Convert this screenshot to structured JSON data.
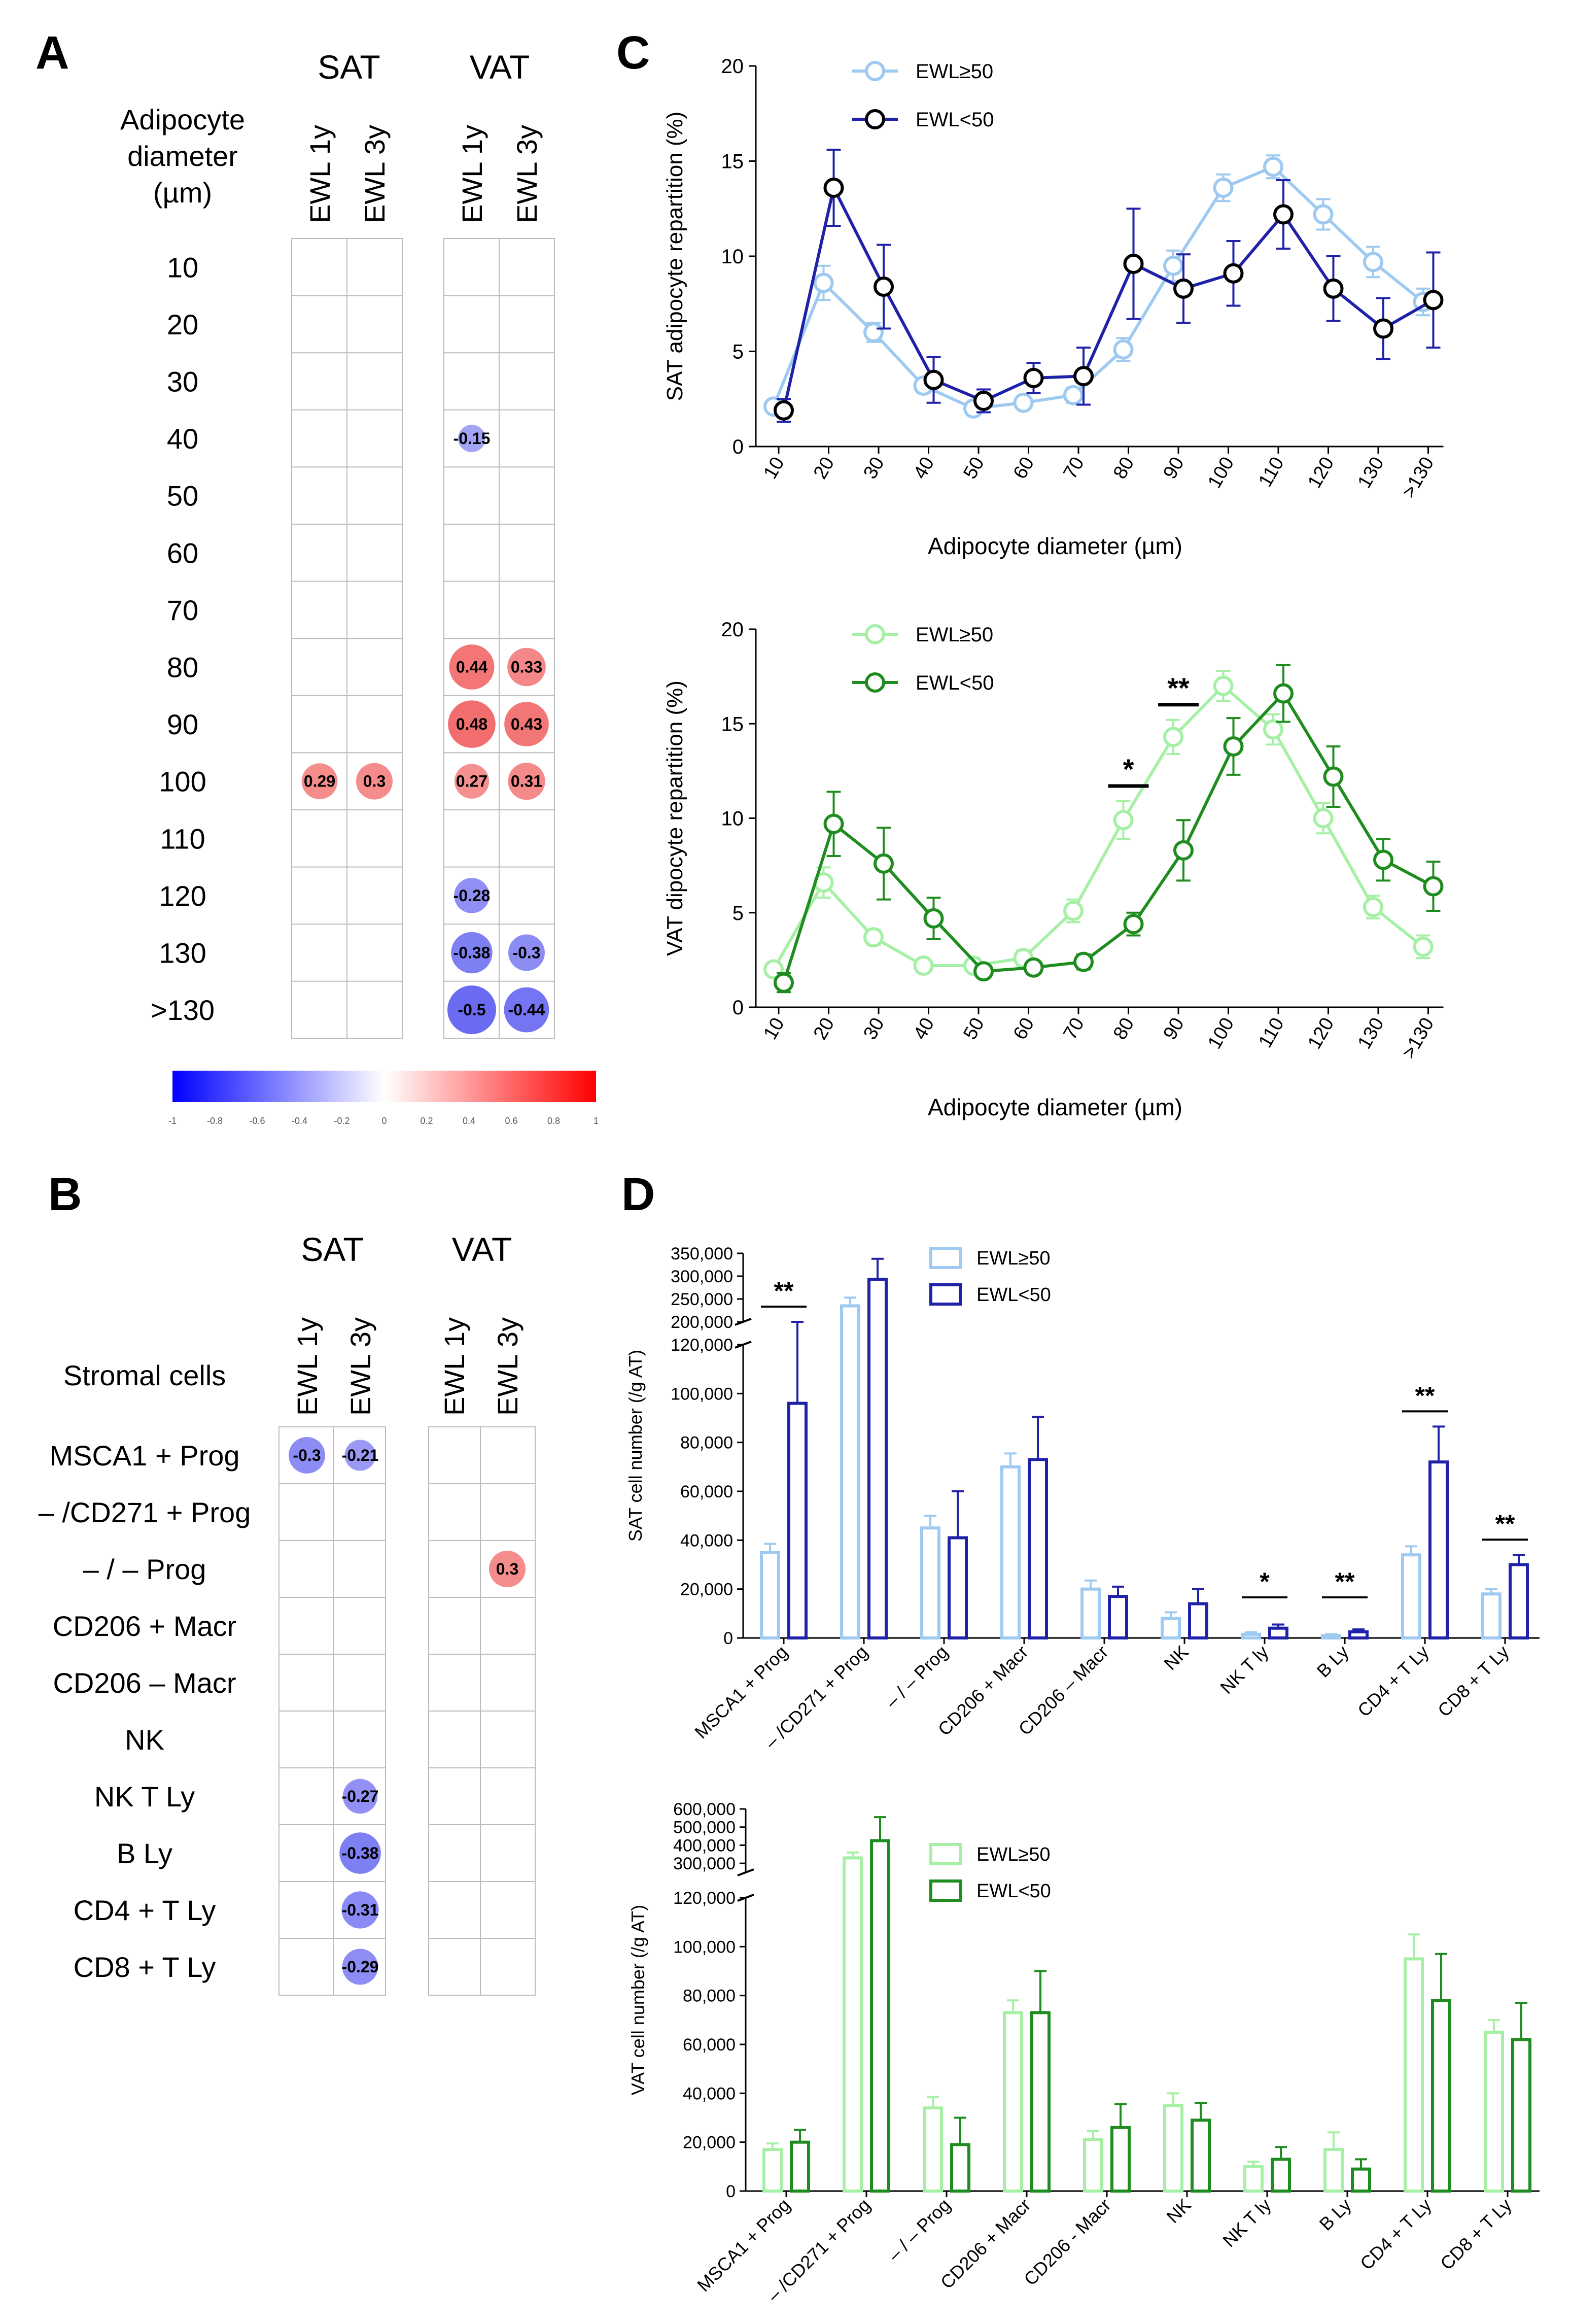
{
  "colors": {
    "sat_light": "#9ec9f0",
    "sat_dark": "#1f22a8",
    "vat_light": "#a6f0a6",
    "vat_dark": "#1f8c1f",
    "pos": "#f26b6b",
    "neg": "#6b6bf2",
    "black": "#000000",
    "grid": "#bbbbbb"
  },
  "panel_labels": {
    "a": "A",
    "b": "B",
    "c": "C",
    "d": "D"
  },
  "corr_a": {
    "group_labels": [
      "SAT",
      "VAT"
    ],
    "col_labels": [
      "EWL 1y",
      "EWL 3y",
      "EWL 1y",
      "EWL 3y"
    ],
    "row_header": [
      "Adipocyte",
      "diameter",
      "(µm)"
    ],
    "rows": [
      "10",
      "20",
      "30",
      "40",
      "50",
      "60",
      "70",
      "80",
      "90",
      "100",
      "110",
      "120",
      "130",
      ">130"
    ],
    "cells": [
      {
        "row": 3,
        "col": 2,
        "value": -0.15,
        "label": "-0.15"
      },
      {
        "row": 7,
        "col": 2,
        "value": 0.44,
        "label": "0.44"
      },
      {
        "row": 7,
        "col": 3,
        "value": 0.33,
        "label": "0.33"
      },
      {
        "row": 8,
        "col": 2,
        "value": 0.48,
        "label": "0.48"
      },
      {
        "row": 8,
        "col": 3,
        "value": 0.43,
        "label": "0.43"
      },
      {
        "row": 9,
        "col": 0,
        "value": 0.29,
        "label": "0.29"
      },
      {
        "row": 9,
        "col": 1,
        "value": 0.3,
        "label": "0.3"
      },
      {
        "row": 9,
        "col": 2,
        "value": 0.27,
        "label": "0.27"
      },
      {
        "row": 9,
        "col": 3,
        "value": 0.31,
        "label": "0.31"
      },
      {
        "row": 11,
        "col": 2,
        "value": -0.28,
        "label": "-0.28"
      },
      {
        "row": 12,
        "col": 2,
        "value": -0.38,
        "label": "-0.38"
      },
      {
        "row": 12,
        "col": 3,
        "value": -0.3,
        "label": "-0.3"
      },
      {
        "row": 13,
        "col": 2,
        "value": -0.5,
        "label": "-0.5"
      },
      {
        "row": 13,
        "col": 3,
        "value": -0.44,
        "label": "-0.44"
      }
    ]
  },
  "colorbar": {
    "ticks": [
      "-1",
      "-0.8",
      "-0.6",
      "-0.4",
      "-0.2",
      "0",
      "0.2",
      "0.4",
      "0.6",
      "0.8",
      "1"
    ]
  },
  "corr_b": {
    "group_labels": [
      "SAT",
      "VAT"
    ],
    "col_labels": [
      "EWL 1y",
      "EWL 3y",
      "EWL 1y",
      "EWL 3y"
    ],
    "row_header": "Stromal cells",
    "rows": [
      "MSCA1 + Prog",
      "– /CD271 + Prog",
      "– / – Prog",
      "CD206 + Macr",
      "CD206 – Macr",
      "NK",
      "NK T Ly",
      "B Ly",
      "CD4 + T Ly",
      "CD8 + T Ly"
    ],
    "cells": [
      {
        "row": 0,
        "col": 0,
        "value": -0.3,
        "label": "-0.3"
      },
      {
        "row": 0,
        "col": 1,
        "value": -0.21,
        "label": "-0.21"
      },
      {
        "row": 2,
        "col": 3,
        "value": 0.3,
        "label": "0.3"
      },
      {
        "row": 6,
        "col": 1,
        "value": -0.27,
        "label": "-0.27"
      },
      {
        "row": 7,
        "col": 1,
        "value": -0.38,
        "label": "-0.38"
      },
      {
        "row": 8,
        "col": 1,
        "value": -0.31,
        "label": "-0.31"
      },
      {
        "row": 9,
        "col": 1,
        "value": -0.29,
        "label": "-0.29"
      }
    ]
  },
  "chart_data": [
    {
      "type": "line",
      "title": "",
      "xlabel": "Adipocyte diameter (µm)",
      "ylabel": "SAT adipocyte repartition (%)",
      "categories": [
        "10",
        "20",
        "30",
        "40",
        "50",
        "60",
        "70",
        "80",
        "90",
        "100",
        "110",
        "120",
        "130",
        ">130"
      ],
      "ylim": [
        0,
        20
      ],
      "yticks": [
        "0",
        "5",
        "10",
        "15",
        "20"
      ],
      "legend": "top-left",
      "series": [
        {
          "name": "EWL≥50",
          "values": [
            2.1,
            8.6,
            6.0,
            3.2,
            2.0,
            2.3,
            2.7,
            5.1,
            9.5,
            13.6,
            14.7,
            12.2,
            9.7,
            7.6
          ],
          "errors": [
            0.3,
            0.9,
            0.5,
            0.4,
            0.3,
            0.3,
            0.4,
            0.6,
            0.8,
            0.7,
            0.6,
            0.8,
            0.8,
            0.7
          ]
        },
        {
          "name": "EWL<50",
          "values": [
            1.9,
            13.6,
            8.4,
            3.5,
            2.4,
            3.6,
            3.7,
            9.6,
            8.3,
            9.1,
            12.2,
            8.3,
            6.2,
            7.7
          ],
          "errors": [
            0.6,
            2.0,
            2.2,
            1.2,
            0.6,
            0.8,
            1.5,
            2.9,
            1.8,
            1.7,
            1.8,
            1.7,
            1.6,
            2.5
          ]
        }
      ],
      "significance": []
    },
    {
      "type": "line",
      "title": "",
      "xlabel": "Adipocyte diameter (µm)",
      "ylabel": "VAT dipocyte repartition (%)",
      "categories": [
        "10",
        "20",
        "30",
        "40",
        "50",
        "60",
        "70",
        "80",
        "90",
        "100",
        "110",
        "120",
        "130",
        ">130"
      ],
      "ylim": [
        0,
        20
      ],
      "yticks": [
        "0",
        "5",
        "10",
        "15",
        "20"
      ],
      "legend": "top-left",
      "series": [
        {
          "name": "EWL≥50",
          "values": [
            2.0,
            6.6,
            3.7,
            2.2,
            2.2,
            2.6,
            5.1,
            9.9,
            14.3,
            17.0,
            14.7,
            10.0,
            5.3,
            3.2
          ],
          "errors": [
            0.3,
            0.8,
            0.4,
            0.3,
            0.3,
            0.4,
            0.6,
            1.0,
            0.9,
            0.8,
            0.8,
            0.8,
            0.6,
            0.6
          ]
        },
        {
          "name": "EWL<50",
          "values": [
            1.3,
            9.7,
            7.6,
            4.7,
            1.9,
            2.1,
            2.4,
            4.4,
            8.3,
            13.8,
            16.6,
            12.2,
            7.8,
            6.4
          ],
          "errors": [
            0.5,
            1.7,
            1.9,
            1.1,
            0.3,
            0.3,
            0.4,
            0.6,
            1.6,
            1.5,
            1.5,
            1.6,
            1.1,
            1.3
          ]
        }
      ],
      "significance": [
        {
          "category": "80",
          "label": "*"
        },
        {
          "category": "90",
          "label": "**"
        }
      ]
    },
    {
      "type": "bar",
      "title": "",
      "xlabel": "",
      "ylabel": "SAT cell number (/g AT)",
      "categories": [
        "MSCA1 + Prog",
        "– /CD271 + Prog",
        "– / – Prog",
        "CD206 + Macr",
        "CD206 – Macr",
        "NK",
        "NK T ly",
        "B Ly",
        "CD4 + T Ly",
        "CD8 + T Ly"
      ],
      "ylim_lower": [
        0,
        120000
      ],
      "ylim_upper": [
        200000,
        350000
      ],
      "yticks_lower": [
        "0",
        "20,000",
        "40,000",
        "60,000",
        "80,000",
        "100,000",
        "120,000"
      ],
      "yticks_upper": [
        "200,000",
        "250,000",
        "300,000",
        "350,000"
      ],
      "legend": "top-center",
      "series": [
        {
          "name": "EWL≥50",
          "values": [
            35000,
            235000,
            45000,
            70000,
            20000,
            8000,
            1500,
            1000,
            34000,
            18000
          ],
          "errors": [
            3500,
            18000,
            5000,
            5500,
            3500,
            2500,
            800,
            500,
            3500,
            2000
          ]
        },
        {
          "name": "EWL<50",
          "values": [
            96000,
            293000,
            41000,
            73000,
            17000,
            14000,
            4000,
            2500,
            72000,
            30000
          ],
          "errors": [
            29000,
            45000,
            19000,
            17500,
            4000,
            6000,
            1500,
            1000,
            14500,
            4000
          ]
        }
      ],
      "significance": [
        {
          "category": "MSCA1 + Prog",
          "label": "**"
        },
        {
          "category": "NK T ly",
          "label": "*"
        },
        {
          "category": "B Ly",
          "label": "**"
        },
        {
          "category": "CD4 + T Ly",
          "label": "**"
        },
        {
          "category": "CD8 + T Ly",
          "label": "**"
        }
      ]
    },
    {
      "type": "bar",
      "title": "",
      "xlabel": "",
      "ylabel": "VAT cell number (/g AT)",
      "categories": [
        "MSCA1 + Prog",
        "– /CD271 + Prog",
        "– / – Prog",
        "CD206 + Macr",
        "CD206 - Macr",
        "NK",
        "NK T ly",
        "B Ly",
        "CD4 + T Ly",
        "CD8 + T Ly"
      ],
      "ylim_lower": [
        0,
        120000
      ],
      "ylim_upper": [
        250000,
        600000
      ],
      "yticks_lower": [
        "0",
        "20,000",
        "40,000",
        "60,000",
        "80,000",
        "100,000",
        "120,000"
      ],
      "yticks_upper": [
        "300,000",
        "400,000",
        "500,000",
        "600,000"
      ],
      "legend": "top-center",
      "series": [
        {
          "name": "EWL≥50",
          "values": [
            17000,
            330000,
            34000,
            73000,
            21000,
            35000,
            10000,
            17000,
            95000,
            65000
          ],
          "errors": [
            2500,
            30000,
            4500,
            5000,
            3500,
            5000,
            2000,
            7000,
            10000,
            5000
          ]
        },
        {
          "name": "EWL<50",
          "values": [
            20000,
            425000,
            19000,
            73000,
            26000,
            29000,
            13000,
            9000,
            78000,
            62000
          ],
          "errors": [
            5000,
            130000,
            11000,
            17000,
            9500,
            7000,
            5000,
            4000,
            19000,
            15000
          ]
        }
      ],
      "significance": []
    }
  ]
}
